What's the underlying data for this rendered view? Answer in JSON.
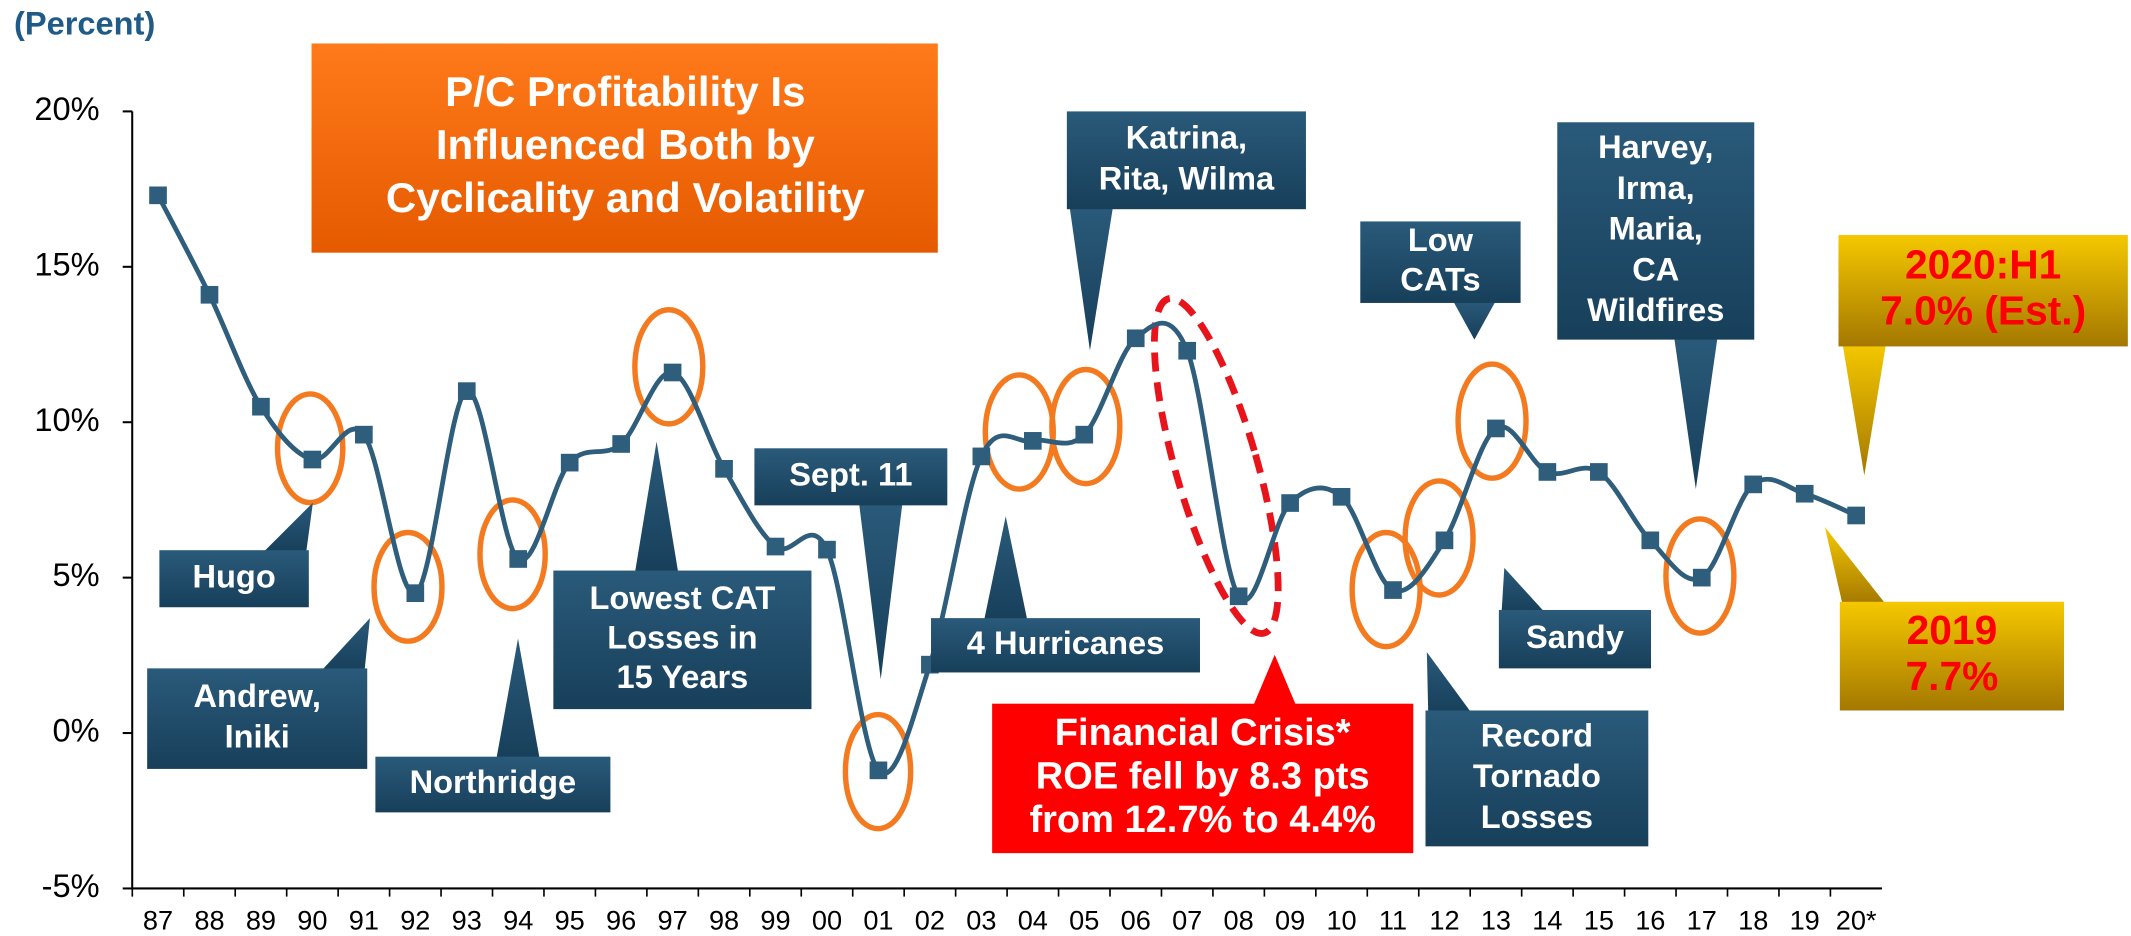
{
  "chart_data": {
    "type": "line",
    "subtitle": "(Percent)",
    "categories": [
      "87",
      "88",
      "89",
      "90",
      "91",
      "92",
      "93",
      "94",
      "95",
      "96",
      "97",
      "98",
      "99",
      "00",
      "01",
      "02",
      "03",
      "04",
      "05",
      "06",
      "07",
      "08",
      "09",
      "10",
      "11",
      "12",
      "13",
      "14",
      "15",
      "16",
      "17",
      "18",
      "19",
      "20*"
    ],
    "series": [
      {
        "name": "ROE",
        "color": "#2f5d7c",
        "values": [
          17.3,
          14.1,
          10.5,
          8.8,
          9.6,
          4.5,
          11.0,
          5.6,
          8.7,
          9.3,
          11.6,
          8.5,
          6.0,
          5.9,
          -1.2,
          2.2,
          8.9,
          9.4,
          9.6,
          12.7,
          12.3,
          4.4,
          7.4,
          7.6,
          4.6,
          6.2,
          9.8,
          8.4,
          8.4,
          6.2,
          5.0,
          8.0,
          7.7,
          7.0
        ]
      }
    ],
    "ylim": [
      -5,
      20
    ],
    "yticks": [
      {
        "value": -5,
        "label": "-5%"
      },
      {
        "value": 0,
        "label": "0%"
      },
      {
        "value": 5,
        "label": "5%"
      },
      {
        "value": 10,
        "label": "10%"
      },
      {
        "value": 15,
        "label": "15%"
      },
      {
        "value": 20,
        "label": "20%"
      }
    ],
    "title_box": {
      "lines": [
        "P/C Profitability Is",
        "Influenced Both by",
        "Cyclicality and Volatility"
      ]
    },
    "annotations": [
      {
        "lines": [
          "Hugo"
        ]
      },
      {
        "lines": [
          "Andrew,",
          "Iniki"
        ]
      },
      {
        "lines": [
          "Northridge"
        ]
      },
      {
        "lines": [
          "Lowest CAT",
          "Losses in",
          "15 Years"
        ]
      },
      {
        "lines": [
          "Sept. 11"
        ]
      },
      {
        "lines": [
          "4 Hurricanes"
        ]
      },
      {
        "lines": [
          "Katrina,",
          "Rita, Wilma"
        ]
      },
      {
        "lines": [
          "Financial Crisis*",
          "ROE fell by 8.3 pts",
          "from 12.7% to 4.4%"
        ]
      },
      {
        "lines": [
          "Low",
          "CATs"
        ]
      },
      {
        "lines": [
          "Harvey,",
          "Irma,",
          "Maria,",
          "CA",
          "Wildfires"
        ]
      },
      {
        "lines": [
          "Sandy"
        ]
      },
      {
        "lines": [
          "Record",
          "Tornado",
          "Losses"
        ]
      },
      {
        "lines": [
          "2020:H1",
          "7.0% (Est.)"
        ]
      },
      {
        "lines": [
          "2019",
          "7.7%"
        ]
      }
    ]
  }
}
